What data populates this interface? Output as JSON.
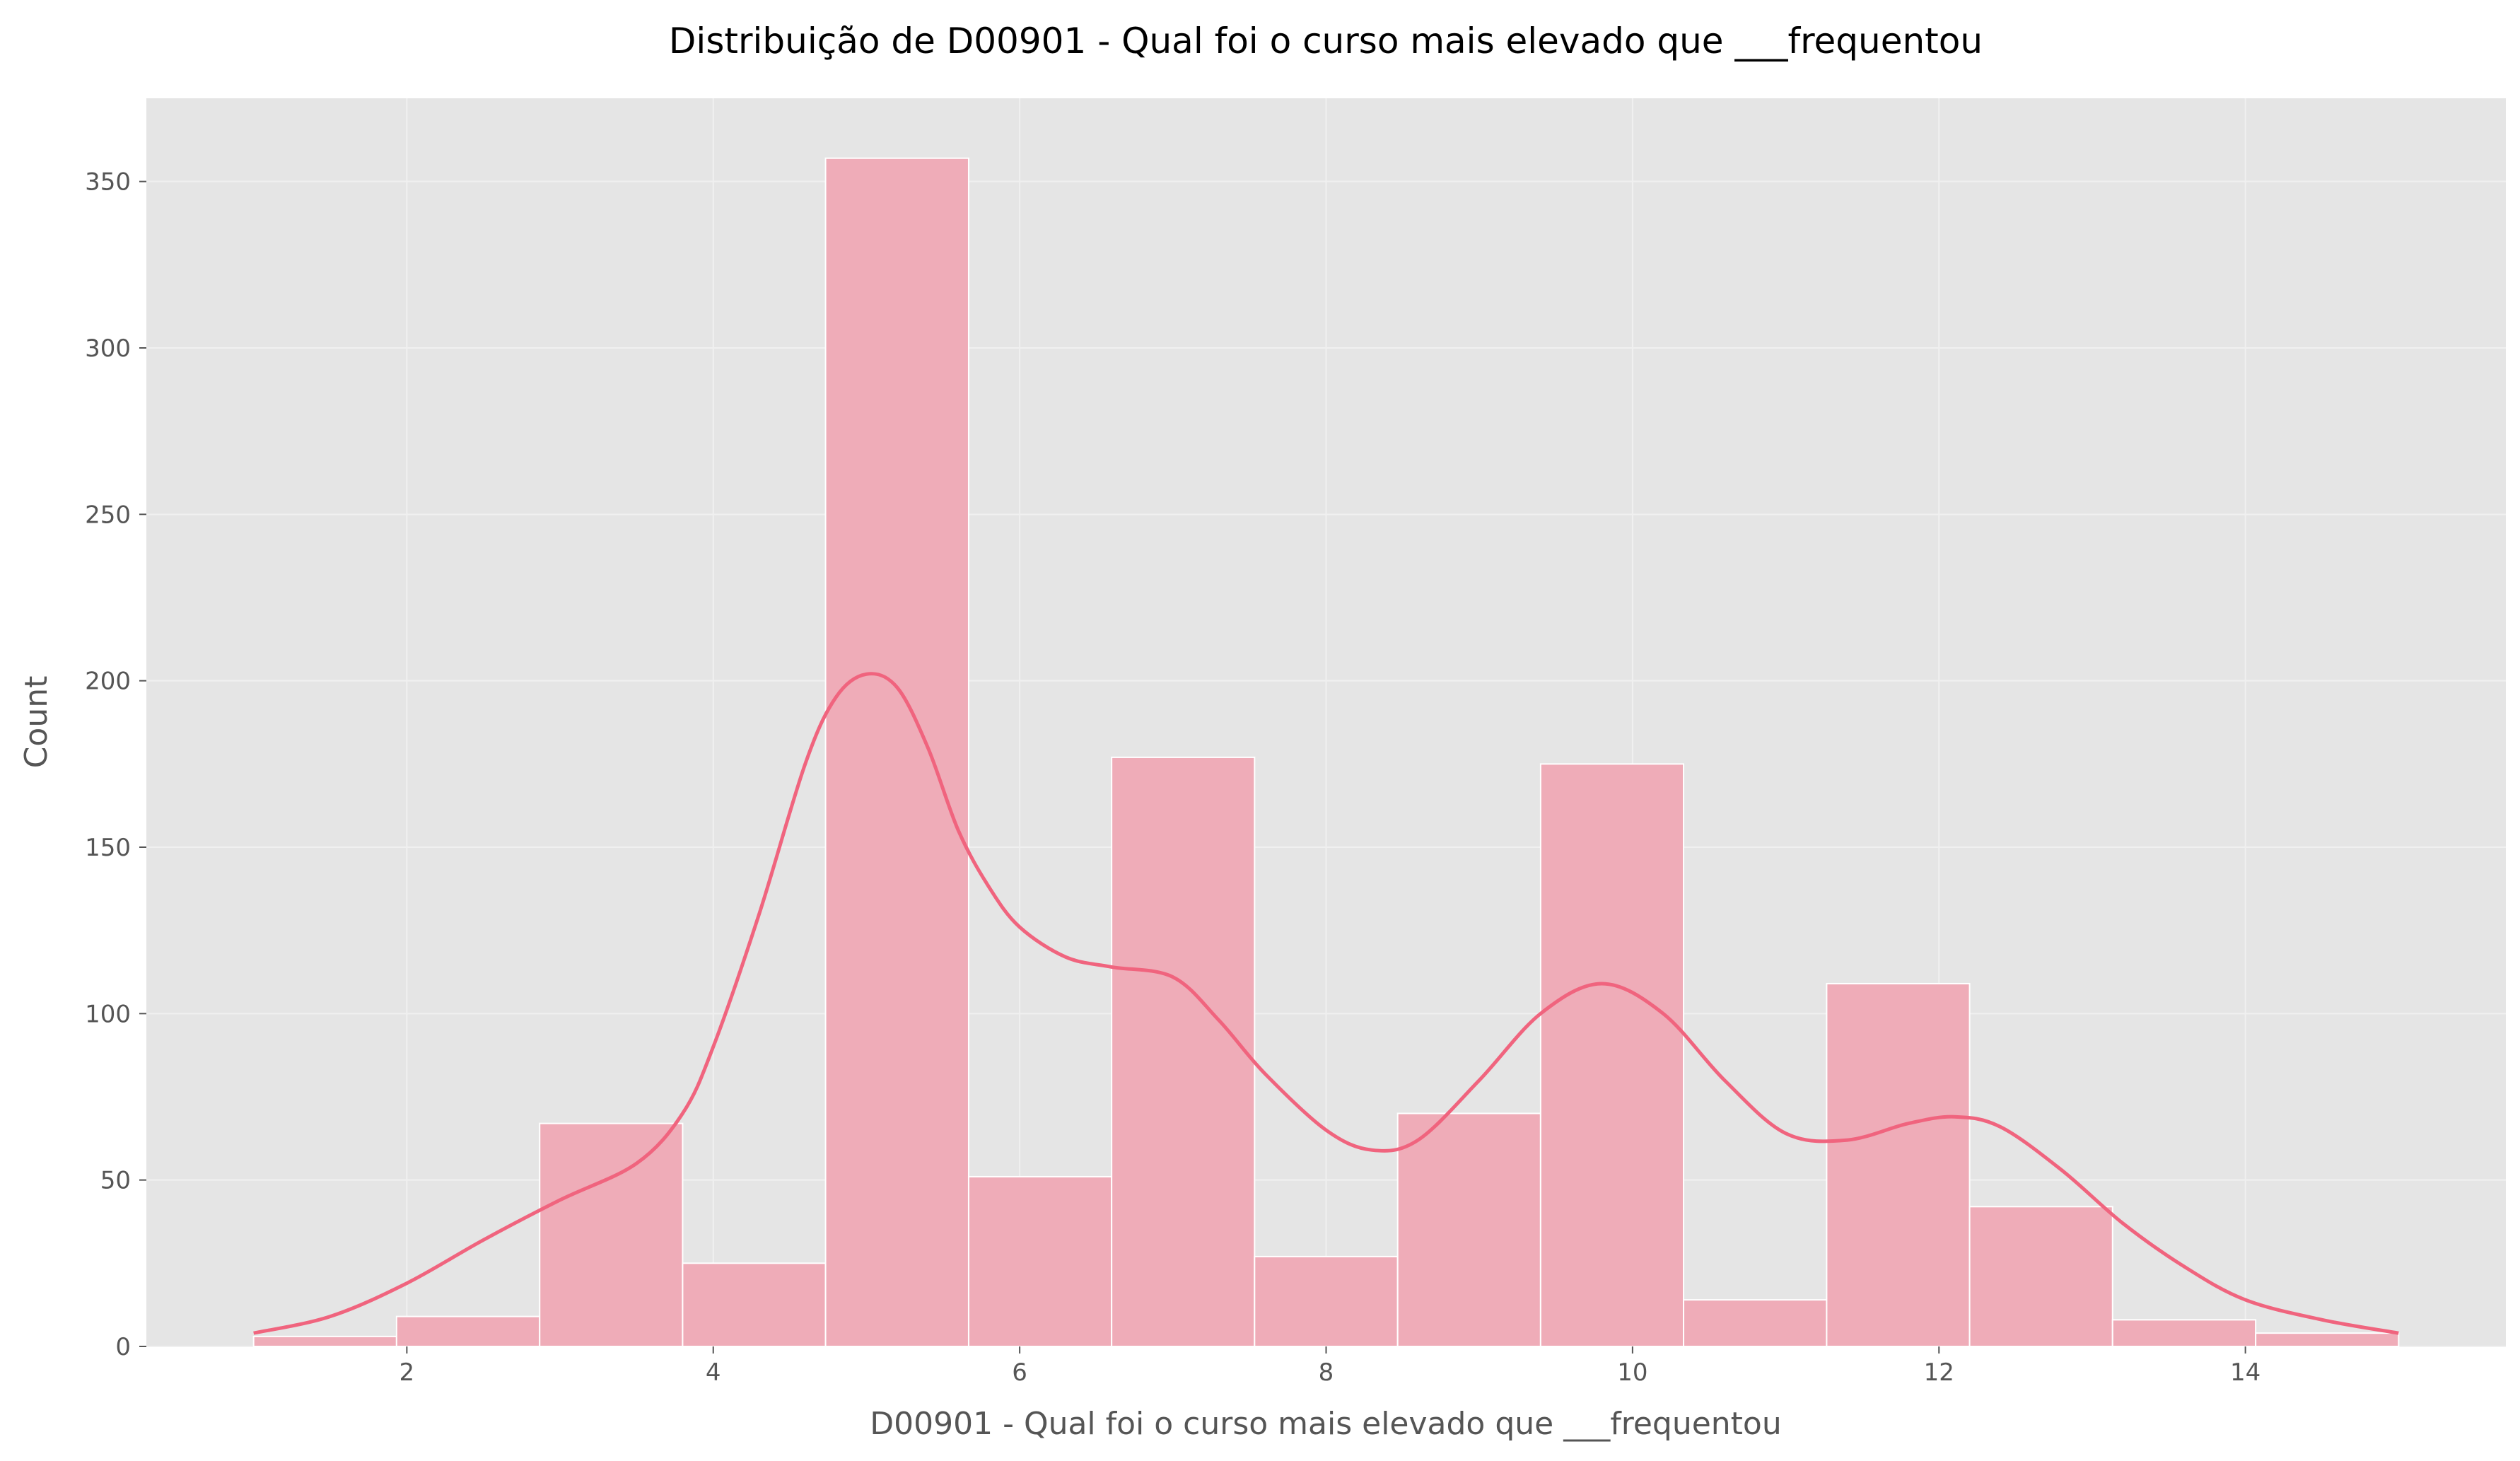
{
  "chart_data": {
    "type": "bar",
    "subtype": "histogram-with-kde",
    "title": "Distribuição de D00901 - Qual foi o curso mais elevado que ___frequentou",
    "xlabel": "D00901 - Qual foi o curso mais elevado que ___frequentou",
    "ylabel": "Count",
    "xlim": [
      0.3,
      15.7
    ],
    "ylim": [
      0,
      375
    ],
    "xticks": [
      2,
      4,
      6,
      8,
      10,
      12,
      14
    ],
    "yticks": [
      0,
      50,
      100,
      150,
      200,
      250,
      300,
      350
    ],
    "grid": true,
    "bins": {
      "edges": [
        1.0,
        1.933,
        2.867,
        3.8,
        4.733,
        5.667,
        6.6,
        7.533,
        8.467,
        9.4,
        10.333,
        11.267,
        12.2,
        13.133,
        14.067,
        15.0
      ],
      "counts": [
        3,
        9,
        67,
        25,
        357,
        51,
        177,
        27,
        70,
        175,
        14,
        109,
        42,
        8,
        4
      ]
    },
    "kde": {
      "x": [
        1.0,
        1.5,
        2.0,
        2.5,
        3.0,
        3.5,
        3.8,
        4.0,
        4.3,
        4.6,
        4.8,
        5.0,
        5.2,
        5.4,
        5.6,
        5.8,
        6.0,
        6.3,
        6.6,
        7.0,
        7.3,
        7.6,
        8.0,
        8.3,
        8.6,
        9.0,
        9.4,
        9.8,
        10.2,
        10.6,
        11.0,
        11.4,
        11.8,
        12.1,
        12.4,
        12.8,
        13.2,
        13.6,
        14.0,
        14.5,
        15.0
      ],
      "y": [
        4,
        9,
        19,
        32,
        44,
        55,
        70,
        90,
        130,
        175,
        195,
        202,
        198,
        180,
        155,
        138,
        126,
        117,
        114,
        111,
        98,
        82,
        65,
        59,
        62,
        80,
        100,
        109,
        100,
        80,
        64,
        62,
        67,
        69,
        66,
        53,
        37,
        24,
        14,
        8,
        4
      ]
    },
    "colors": {
      "bar_fill": "#EFACB8",
      "bar_edge": "#FFFFFF",
      "kde_line": "#F0647E",
      "plot_background": "#E5E5E5",
      "grid": "#F0F0F0"
    }
  }
}
